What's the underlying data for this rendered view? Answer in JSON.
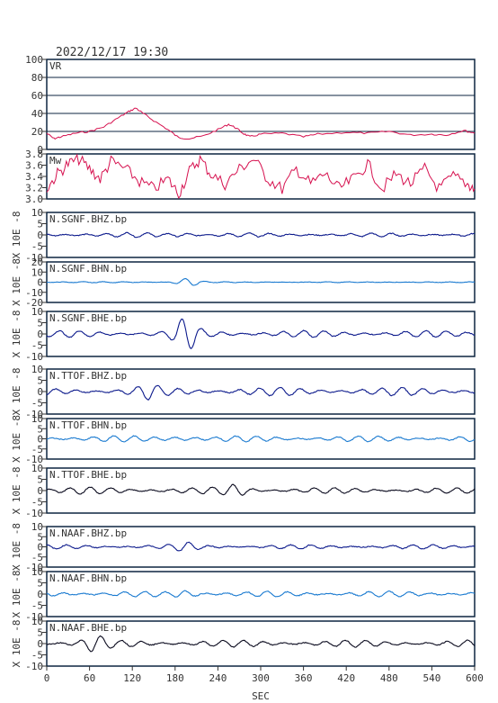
{
  "header": {
    "timestamp": "2022/12/17 19:30"
  },
  "colors": {
    "frame": "#0d2540",
    "vr": "#d6114f",
    "mw": "#d6114f",
    "trace_dark": "#0c1a8c",
    "trace_light": "#1a7ad0",
    "trace_black": "#0a0a1e"
  },
  "chart_data": [
    {
      "type": "line",
      "name": "VR-panel",
      "label": "VR",
      "ylim": [
        0,
        100
      ],
      "yticks": [
        "100",
        "80",
        "60",
        "40",
        "20",
        "0"
      ],
      "grid": true,
      "series": [
        {
          "color": "#d6114f",
          "points": [
            [
              0,
              18
            ],
            [
              10,
              12
            ],
            [
              20,
              14
            ],
            [
              40,
              18
            ],
            [
              60,
              20
            ],
            [
              80,
              25
            ],
            [
              100,
              35
            ],
            [
              115,
              42
            ],
            [
              125,
              46
            ],
            [
              135,
              40
            ],
            [
              150,
              32
            ],
            [
              170,
              22
            ],
            [
              185,
              13
            ],
            [
              200,
              12
            ],
            [
              220,
              15
            ],
            [
              240,
              22
            ],
            [
              255,
              28
            ],
            [
              265,
              24
            ],
            [
              275,
              18
            ],
            [
              285,
              14
            ],
            [
              300,
              17
            ],
            [
              330,
              18
            ],
            [
              360,
              14
            ],
            [
              380,
              17
            ],
            [
              420,
              19
            ],
            [
              450,
              18
            ],
            [
              480,
              20
            ],
            [
              510,
              16
            ],
            [
              540,
              17
            ],
            [
              560,
              16
            ],
            [
              585,
              21
            ],
            [
              600,
              18
            ]
          ]
        }
      ]
    },
    {
      "type": "line",
      "name": "Mw-panel",
      "label": "Mw",
      "ylim": [
        3.0,
        3.9
      ],
      "yticks": [
        "3.8",
        "3.6",
        "3.4",
        "3.2",
        "3.0"
      ],
      "grid": false,
      "series": [
        {
          "color": "#d6114f",
          "points": [
            [
              0,
              3.2
            ],
            [
              15,
              3.5
            ],
            [
              30,
              3.7
            ],
            [
              45,
              3.8
            ],
            [
              60,
              3.6
            ],
            [
              75,
              3.4
            ],
            [
              90,
              3.75
            ],
            [
              110,
              3.6
            ],
            [
              130,
              3.35
            ],
            [
              150,
              3.2
            ],
            [
              170,
              3.4
            ],
            [
              185,
              3.1
            ],
            [
              200,
              3.55
            ],
            [
              215,
              3.8
            ],
            [
              230,
              3.5
            ],
            [
              250,
              3.3
            ],
            [
              270,
              3.6
            ],
            [
              290,
              3.8
            ],
            [
              310,
              3.4
            ],
            [
              330,
              3.2
            ],
            [
              350,
              3.6
            ],
            [
              370,
              3.3
            ],
            [
              390,
              3.5
            ],
            [
              410,
              3.2
            ],
            [
              430,
              3.4
            ],
            [
              450,
              3.7
            ],
            [
              470,
              3.2
            ],
            [
              490,
              3.5
            ],
            [
              510,
              3.3
            ],
            [
              530,
              3.6
            ],
            [
              550,
              3.2
            ],
            [
              570,
              3.45
            ],
            [
              590,
              3.3
            ],
            [
              600,
              3.2
            ]
          ]
        }
      ]
    },
    {
      "type": "line",
      "name": "N.SGNF.BHZ-panel",
      "label": "N.SGNF.BHZ.bp",
      "ylim": [
        -10,
        10
      ],
      "yticks": [
        "10",
        "5",
        "0",
        "-5",
        "-10"
      ],
      "amp": [
        1,
        2,
        0.8
      ],
      "event_x": 195,
      "color": "#0c1a8c",
      "series": []
    },
    {
      "type": "line",
      "name": "N.SGNF.BHN-panel",
      "label": "N.SGNF.BHN.bp",
      "ylim": [
        -20,
        20
      ],
      "yticks": [
        "20",
        "10",
        "0",
        "-10",
        "-20"
      ],
      "amp": [
        0.5,
        7,
        0.4
      ],
      "event_x": 195,
      "color": "#1a7ad0",
      "series": []
    },
    {
      "type": "line",
      "name": "N.SGNF.BHE-panel",
      "label": "N.SGNF.BHE.bp",
      "ylim": [
        -10,
        10
      ],
      "yticks": [
        "10",
        "5",
        "0",
        "-5",
        "-10"
      ],
      "amp": [
        1.5,
        6,
        1.5
      ],
      "event_x": 195,
      "color": "#0c1a8c",
      "series": []
    },
    {
      "type": "line",
      "name": "N.TTOF.BHZ-panel",
      "label": "N.TTOF.BHZ.bp",
      "ylim": [
        -10,
        10
      ],
      "yticks": [
        "10",
        "5",
        "0",
        "-5",
        "-10"
      ],
      "amp": [
        1.5,
        2,
        1.8
      ],
      "event_x": 140,
      "color": "#0c1a8c",
      "series": []
    },
    {
      "type": "line",
      "name": "N.TTOF.BHN-panel",
      "label": "N.TTOF.BHN.bp",
      "ylim": [
        -10,
        10
      ],
      "yticks": [
        "10",
        "5",
        "0",
        "-5",
        "-10"
      ],
      "amp": [
        1.5,
        2.5,
        1.4
      ],
      "event_x": 190,
      "color": "#1a7ad0",
      "series": []
    },
    {
      "type": "line",
      "name": "N.TTOF.BHE-panel",
      "label": "N.TTOF.BHE.bp",
      "ylim": [
        -10,
        10
      ],
      "yticks": [
        "10",
        "5",
        "0",
        "-5",
        "-10"
      ],
      "amp": [
        1.5,
        2.5,
        1.2
      ],
      "event_x": 270,
      "color": "#0a0a1e",
      "series": []
    },
    {
      "type": "line",
      "name": "N.NAAF.BHZ-panel",
      "label": "N.NAAF.BHZ.bp",
      "ylim": [
        -10,
        10
      ],
      "yticks": [
        "10",
        "5",
        "0",
        "-5",
        "-10"
      ],
      "amp": [
        1,
        1.5,
        1
      ],
      "event_x": 195,
      "color": "#0c1a8c",
      "series": []
    },
    {
      "type": "line",
      "name": "N.NAAF.BHN-panel",
      "label": "N.NAAF.BHN.bp",
      "ylim": [
        -10,
        10
      ],
      "yticks": [
        "10",
        "5",
        "0",
        "-5",
        "-10"
      ],
      "amp": [
        1.2,
        2.5,
        1.2
      ],
      "event_x": 200,
      "color": "#1a7ad0",
      "series": []
    },
    {
      "type": "line",
      "name": "N.NAAF.BHE-panel",
      "label": "N.NAAF.BHE.bp",
      "ylim": [
        -10,
        10
      ],
      "yticks": [
        "10",
        "5",
        "0",
        "-5",
        "-10"
      ],
      "amp": [
        1.5,
        3,
        1.5
      ],
      "event_x": 65,
      "color": "#0a0a1e",
      "series": []
    }
  ],
  "yunit_label": "X 10E -8",
  "xaxis": {
    "label": "SEC",
    "xlim": [
      0,
      600
    ],
    "ticks": [
      "0",
      "60",
      "120",
      "180",
      "240",
      "300",
      "360",
      "420",
      "480",
      "540",
      "600"
    ]
  }
}
